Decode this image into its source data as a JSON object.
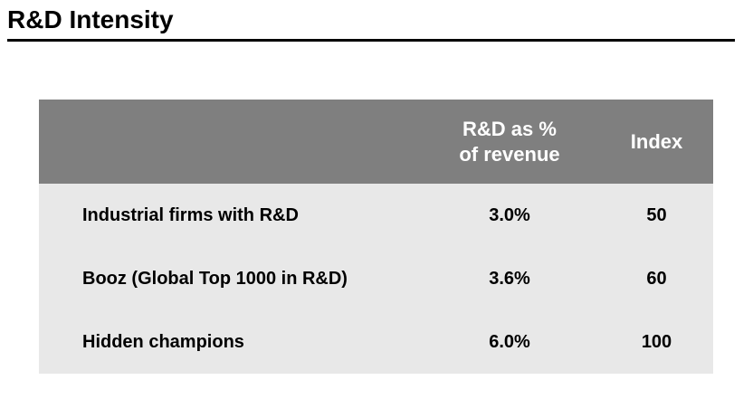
{
  "page": {
    "title": "R&D Intensity"
  },
  "colors": {
    "header_bg": "#7f7f7f",
    "header_text": "#ffffff",
    "body_bg": "#e8e8e8",
    "text": "#000000",
    "title_text": "#000000"
  },
  "table": {
    "header": {
      "col2_line1": "R&D as %",
      "col2_line2": "of revenue",
      "col3": "Index"
    },
    "rows": [
      {
        "label": "Industrial firms with R&D",
        "rd_pct": "3.0%",
        "index": "50"
      },
      {
        "label": "Booz (Global Top 1000 in R&D)",
        "rd_pct": "3.6%",
        "index": "60"
      },
      {
        "label": "Hidden champions",
        "rd_pct": "6.0%",
        "index": "100"
      }
    ]
  },
  "chart_data": {
    "type": "table",
    "title": "R&D Intensity",
    "columns": [
      "",
      "R&D as % of revenue",
      "Index"
    ],
    "rows": [
      [
        "Industrial firms with R&D",
        "3.0%",
        "50"
      ],
      [
        "Booz (Global Top 1000 in R&D)",
        "3.6%",
        "60"
      ],
      [
        "Hidden champions",
        "6.0%",
        "100"
      ]
    ]
  }
}
